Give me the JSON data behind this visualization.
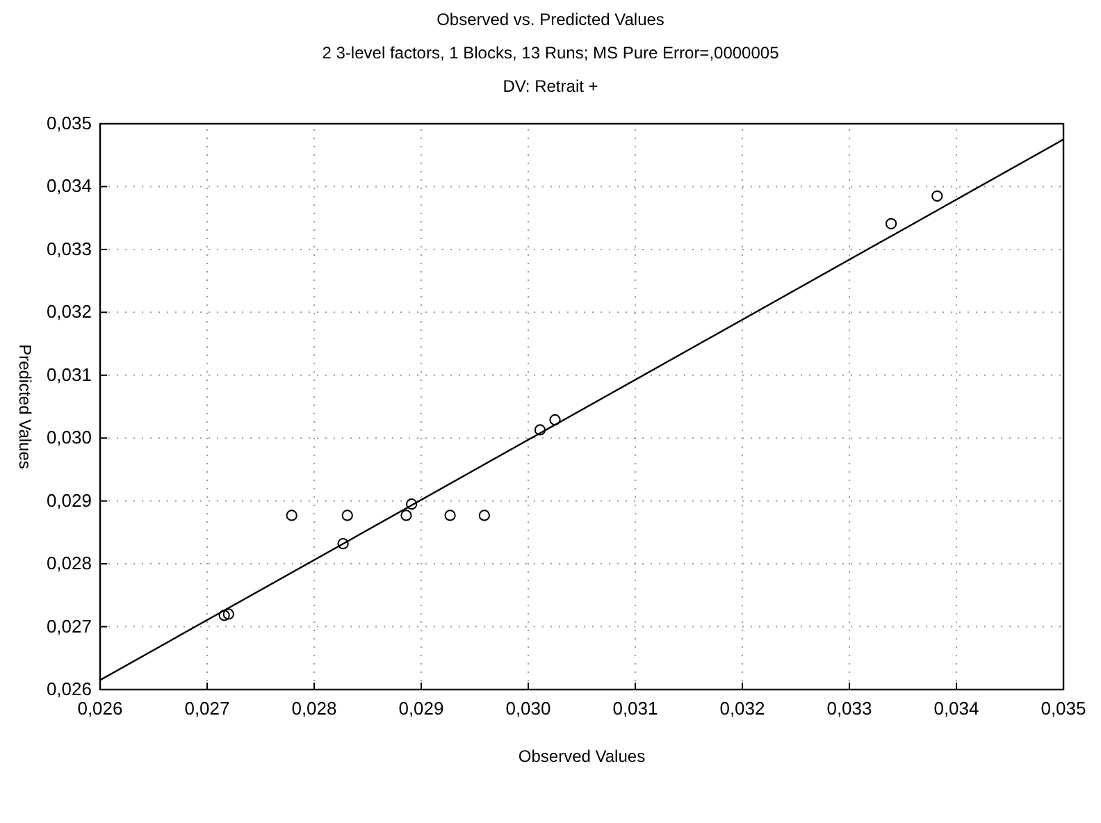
{
  "chart_data": {
    "type": "scatter",
    "title": "Observed vs. Predicted Values",
    "subtitle": "2 3-level factors, 1 Blocks, 13 Runs; MS Pure Error=,0000005\nDV: Retrait +",
    "xlabel": "Observed Values",
    "ylabel": "Predicted Values",
    "xlim": [
      0.026,
      0.035
    ],
    "ylim": [
      0.026,
      0.035
    ],
    "xticks": [
      {
        "value": 0.026,
        "label": "0,026"
      },
      {
        "value": 0.027,
        "label": "0,027"
      },
      {
        "value": 0.028,
        "label": "0,028"
      },
      {
        "value": 0.029,
        "label": "0,029"
      },
      {
        "value": 0.03,
        "label": "0,030"
      },
      {
        "value": 0.031,
        "label": "0,031"
      },
      {
        "value": 0.032,
        "label": "0,032"
      },
      {
        "value": 0.033,
        "label": "0,033"
      },
      {
        "value": 0.034,
        "label": "0,034"
      },
      {
        "value": 0.035,
        "label": "0,035"
      }
    ],
    "yticks": [
      {
        "value": 0.026,
        "label": "0,026"
      },
      {
        "value": 0.027,
        "label": "0,027"
      },
      {
        "value": 0.028,
        "label": "0,028"
      },
      {
        "value": 0.029,
        "label": "0,029"
      },
      {
        "value": 0.03,
        "label": "0,030"
      },
      {
        "value": 0.031,
        "label": "0,031"
      },
      {
        "value": 0.032,
        "label": "0,032"
      },
      {
        "value": 0.033,
        "label": "0,033"
      },
      {
        "value": 0.034,
        "label": "0,034"
      },
      {
        "value": 0.035,
        "label": "0,035"
      }
    ],
    "grid": true,
    "series": [
      {
        "marker": "circle",
        "color": "#000000",
        "x": [
          0.02716,
          0.0272,
          0.02779,
          0.02827,
          0.02831,
          0.02886,
          0.02891,
          0.02927,
          0.02959,
          0.03011,
          0.03025,
          0.03339,
          0.03382
        ],
        "values": [
          0.02718,
          0.0272,
          0.02877,
          0.02832,
          0.02877,
          0.02877,
          0.02895,
          0.02877,
          0.02877,
          0.03013,
          0.03029,
          0.03341,
          0.03385
        ]
      },
      {
        "type": "line",
        "color": "#000000",
        "x": [
          0.026,
          0.035
        ],
        "values": [
          0.02615,
          0.03475
        ]
      }
    ]
  }
}
